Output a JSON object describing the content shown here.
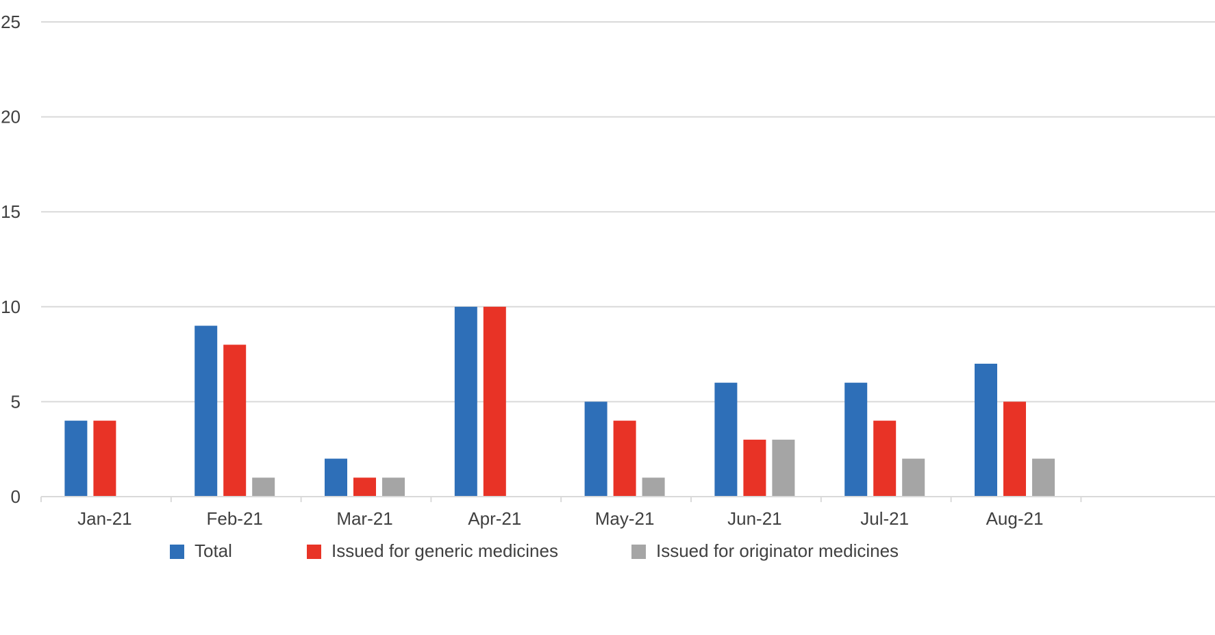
{
  "chart_data": {
    "type": "bar",
    "title": "",
    "xlabel": "",
    "ylabel": "",
    "categories": [
      "Jan-21",
      "Feb-21",
      "Mar-21",
      "Apr-21",
      "May-21",
      "Jun-21",
      "Jul-21",
      "Aug-21"
    ],
    "ylim": [
      0,
      25
    ],
    "yticks": [
      0,
      5,
      10,
      15,
      20,
      25
    ],
    "grid": true,
    "legend_position": "bottom",
    "series": [
      {
        "name": "Total",
        "color": "#2e6fb8",
        "values": [
          4,
          9,
          2,
          10,
          5,
          6,
          6,
          7
        ]
      },
      {
        "name": "Issued for generic medicines",
        "color": "#e83326",
        "values": [
          4,
          8,
          1,
          10,
          4,
          3,
          4,
          5
        ]
      },
      {
        "name": "Issued for originator medicines",
        "color": "#a5a5a5",
        "values": [
          0,
          1,
          1,
          0,
          1,
          3,
          2,
          2
        ]
      }
    ]
  }
}
